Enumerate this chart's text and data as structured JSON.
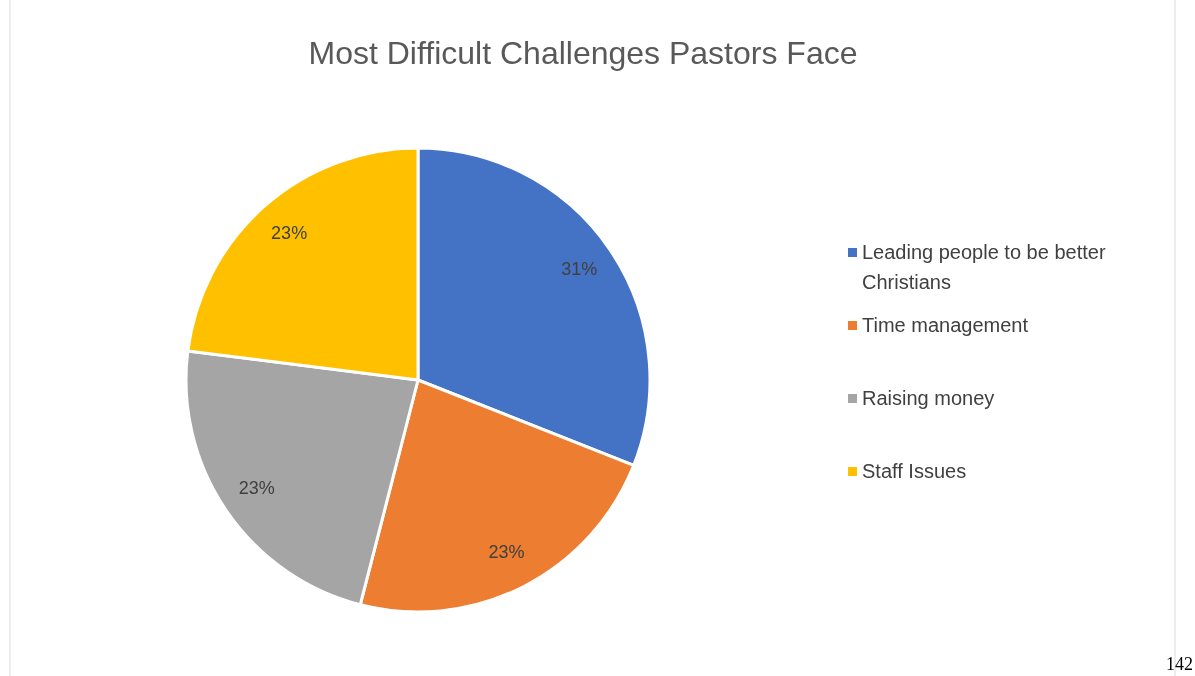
{
  "chart_data": {
    "type": "pie",
    "title": "Most Difficult Challenges Pastors Face",
    "categories": [
      "Leading people to be better Christians",
      "Time management",
      "Raising money",
      "Staff Issues"
    ],
    "values": [
      31,
      23,
      23,
      23
    ],
    "colors": [
      "#4472c4",
      "#ed7d31",
      "#a5a5a5",
      "#ffc000"
    ],
    "value_labels": [
      "31%",
      "23%",
      "23%",
      "23%"
    ],
    "legend": "right",
    "annotations": [
      "142"
    ]
  }
}
